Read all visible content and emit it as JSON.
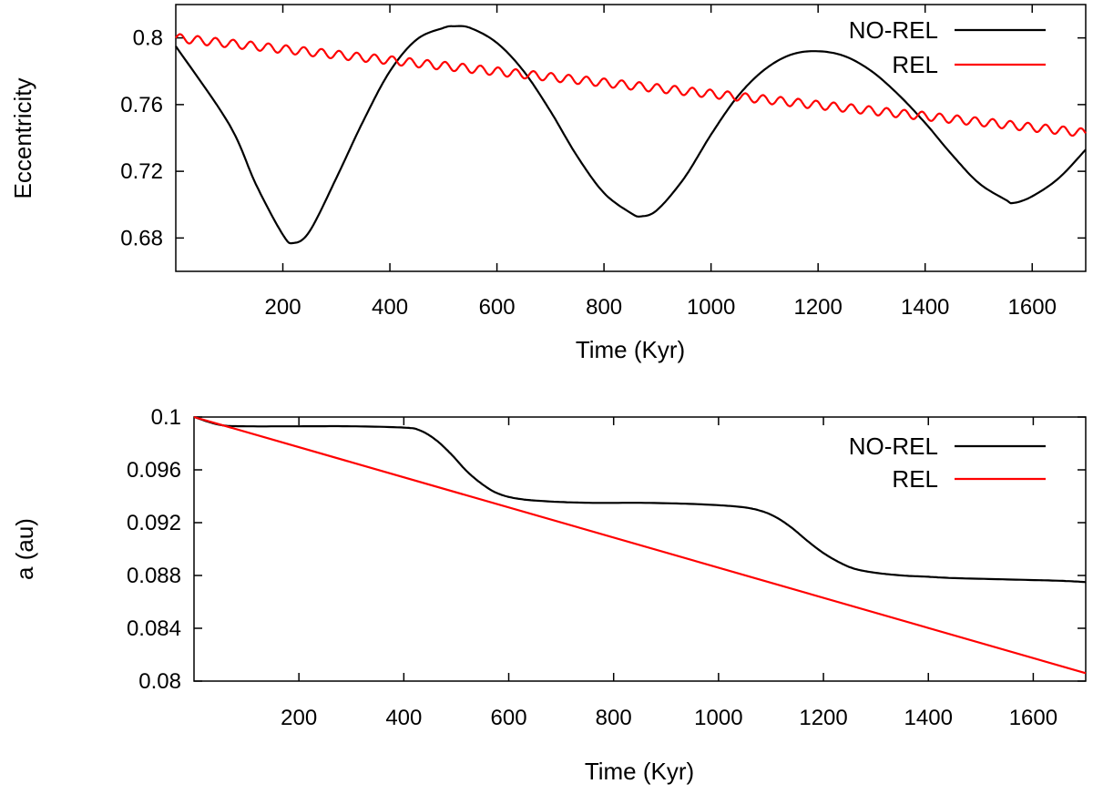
{
  "chart_data": [
    {
      "type": "line",
      "title": "",
      "xlabel": "Time (Kyr)",
      "ylabel": "Eccentricity",
      "xlim": [
        0,
        1700
      ],
      "ylim": [
        0.66,
        0.82
      ],
      "xticks": [
        200,
        400,
        600,
        800,
        1000,
        1200,
        1400,
        1600
      ],
      "xtick_labels": [
        "200",
        "400",
        "600",
        "800",
        "1000",
        "1200",
        "1400",
        "1600"
      ],
      "yticks": [
        0.68,
        0.72,
        0.76,
        0.8
      ],
      "ytick_labels": [
        "0.68",
        "0.72",
        "0.76",
        "0.8"
      ],
      "grid": false,
      "legend_position": "top-right",
      "series": [
        {
          "name": "NO-REL",
          "color": "#000000",
          "x": [
            0,
            100,
            150,
            200,
            220,
            250,
            300,
            350,
            400,
            450,
            500,
            520,
            550,
            600,
            650,
            700,
            750,
            800,
            850,
            870,
            900,
            950,
            1000,
            1050,
            1100,
            1150,
            1200,
            1250,
            1300,
            1350,
            1400,
            1450,
            1500,
            1550,
            1565,
            1600,
            1650,
            1700
          ],
          "y": [
            0.795,
            0.748,
            0.712,
            0.682,
            0.677,
            0.684,
            0.716,
            0.75,
            0.78,
            0.799,
            0.806,
            0.807,
            0.806,
            0.797,
            0.78,
            0.756,
            0.729,
            0.707,
            0.695,
            0.693,
            0.697,
            0.716,
            0.742,
            0.765,
            0.781,
            0.79,
            0.792,
            0.789,
            0.78,
            0.766,
            0.749,
            0.73,
            0.713,
            0.703,
            0.701,
            0.705,
            0.716,
            0.733
          ]
        },
        {
          "name": "REL",
          "color": "#ff0000",
          "x": [
            0,
            1700
          ],
          "y": [
            0.8,
            0.743
          ],
          "oscillation_amplitude": 0.0025,
          "oscillation_period": 33
        }
      ]
    },
    {
      "type": "line",
      "title": "",
      "xlabel": "Time (Kyr)",
      "ylabel": "a (au)",
      "xlim": [
        0,
        1700
      ],
      "ylim": [
        0.08,
        0.1
      ],
      "xticks": [
        200,
        400,
        600,
        800,
        1000,
        1200,
        1400,
        1600
      ],
      "xtick_labels": [
        "200",
        "400",
        "600",
        "800",
        "1000",
        "1200",
        "1400",
        "1600"
      ],
      "yticks": [
        0.08,
        0.084,
        0.088,
        0.092,
        0.096,
        0.1
      ],
      "ytick_labels": [
        "0.08",
        "0.084",
        "0.088",
        "0.092",
        "0.096",
        "0.1"
      ],
      "grid": false,
      "legend_position": "top-right",
      "series": [
        {
          "name": "NO-REL",
          "color": "#000000",
          "x": [
            0,
            50,
            100,
            200,
            300,
            400,
            430,
            460,
            490,
            520,
            550,
            580,
            620,
            680,
            760,
            860,
            960,
            1040,
            1080,
            1110,
            1140,
            1170,
            1200,
            1230,
            1260,
            1300,
            1350,
            1400,
            1450,
            1550,
            1650,
            1700
          ],
          "y": [
            0.1,
            0.0994,
            0.0993,
            0.0993,
            0.0993,
            0.0992,
            0.099,
            0.0983,
            0.0972,
            0.0959,
            0.0949,
            0.0942,
            0.0938,
            0.0936,
            0.0935,
            0.0935,
            0.0934,
            0.0932,
            0.0929,
            0.0924,
            0.0916,
            0.0906,
            0.0897,
            0.089,
            0.0885,
            0.0882,
            0.088,
            0.0879,
            0.0878,
            0.0877,
            0.0876,
            0.0875
          ]
        },
        {
          "name": "REL",
          "color": "#ff0000",
          "x": [
            0,
            1700
          ],
          "y": [
            0.1,
            0.0806
          ]
        }
      ]
    }
  ]
}
